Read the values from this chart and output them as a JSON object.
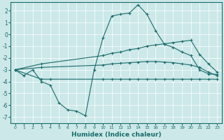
{
  "xlabel": "Humidex (Indice chaleur)",
  "bg_color": "#cce8e8",
  "line_color": "#1a6b6b",
  "grid_color": "#ffffff",
  "xlim": [
    -0.5,
    23.5
  ],
  "ylim": [
    -7.5,
    2.7
  ],
  "yticks": [
    -7,
    -6,
    -5,
    -4,
    -3,
    -2,
    -1,
    0,
    1,
    2
  ],
  "xticks": [
    0,
    1,
    2,
    3,
    4,
    5,
    6,
    7,
    8,
    9,
    10,
    11,
    12,
    13,
    14,
    15,
    16,
    17,
    18,
    19,
    20,
    21,
    22,
    23
  ],
  "line1_x": [
    0,
    1,
    2,
    3,
    4,
    5,
    6,
    7,
    8,
    9,
    10,
    11,
    12,
    13,
    14,
    15,
    16,
    17,
    18,
    19,
    20,
    21,
    22,
    23
  ],
  "line1_y": [
    -3.0,
    -3.5,
    -3.0,
    -4.0,
    -4.3,
    -5.8,
    -6.4,
    -6.5,
    -6.9,
    -3.0,
    -0.3,
    1.55,
    1.7,
    1.8,
    2.5,
    1.7,
    0.3,
    -0.85,
    -1.1,
    -1.5,
    -1.8,
    -3.0,
    -3.35,
    -3.4
  ],
  "line2_x": [
    0,
    3,
    10,
    11,
    12,
    13,
    14,
    15,
    16,
    17,
    18,
    19,
    20,
    21,
    22,
    23
  ],
  "line2_y": [
    -3.0,
    -2.5,
    -1.8,
    -1.6,
    -1.5,
    -1.3,
    -1.2,
    -1.0,
    -0.9,
    -0.8,
    -0.7,
    -0.6,
    -0.5,
    -1.7,
    -2.5,
    -3.2
  ],
  "line3_x": [
    0,
    3,
    10,
    11,
    12,
    13,
    14,
    15,
    16,
    17,
    18,
    19,
    20,
    21,
    22,
    23
  ],
  "line3_y": [
    -3.0,
    -2.8,
    -2.6,
    -2.5,
    -2.45,
    -2.4,
    -2.35,
    -2.3,
    -2.3,
    -2.35,
    -2.4,
    -2.5,
    -2.6,
    -2.8,
    -3.2,
    -3.5
  ],
  "line4_x": [
    0,
    3,
    4,
    10,
    11,
    12,
    13,
    14,
    15,
    16,
    17,
    18,
    19,
    20,
    21,
    22,
    23
  ],
  "line4_y": [
    -3.0,
    -3.8,
    -3.8,
    -3.8,
    -3.8,
    -3.8,
    -3.8,
    -3.8,
    -3.8,
    -3.8,
    -3.8,
    -3.8,
    -3.8,
    -3.8,
    -3.8,
    -3.8,
    -3.8
  ]
}
